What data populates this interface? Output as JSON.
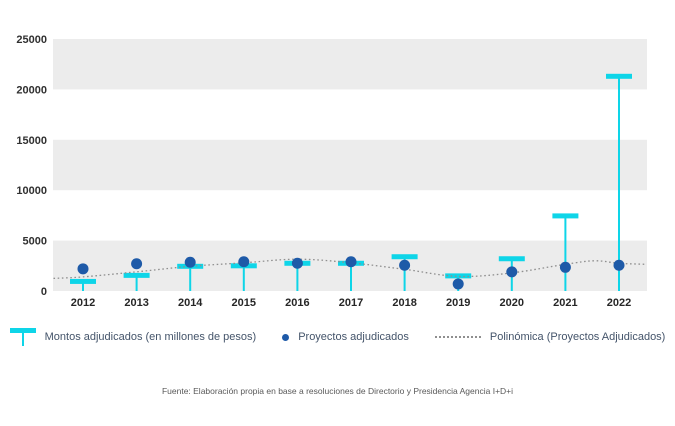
{
  "chart_data": {
    "type": "bar",
    "subtype": "combo: lollipop bars + scatter points + dotted polynomial trend",
    "title": "",
    "xlabel": "",
    "ylabel": "",
    "categories": [
      "2012",
      "2013",
      "2014",
      "2015",
      "2016",
      "2017",
      "2018",
      "2019",
      "2020",
      "2021",
      "2022"
    ],
    "ylim": [
      0,
      25000
    ],
    "yticks": [
      0,
      5000,
      10000,
      15000,
      20000,
      25000
    ],
    "grid": "alternating horizontal gray bands between gridlines",
    "legend_position": "bottom",
    "series": [
      {
        "name": "Montos adjudicados (en millones de pesos)",
        "type": "lollipop-bar",
        "color": "#0ed5e8",
        "values": [
          950,
          1550,
          2450,
          2500,
          2750,
          2750,
          3400,
          1500,
          3200,
          7450,
          21300
        ]
      },
      {
        "name": "Proyectos adjudicados",
        "type": "scatter",
        "color": "#1e5aa8",
        "values": [
          2200,
          2700,
          2850,
          2900,
          2750,
          2900,
          2550,
          700,
          1900,
          2350,
          2550
        ]
      },
      {
        "name": "Polinómica (Proyectos Adjudicados)",
        "type": "dotted-trend",
        "color": "#8f8f8f",
        "x": [
          2011.45,
          2012,
          2013,
          2014,
          2015,
          2016,
          2017,
          2018,
          2019,
          2020,
          2021,
          2021.55,
          2022,
          2022.5
        ],
        "values": [
          1250,
          1400,
          1900,
          2450,
          2800,
          3150,
          2800,
          2150,
          1450,
          1800,
          2650,
          3000,
          2750,
          2650
        ]
      }
    ],
    "colors": {
      "band": "#ececec",
      "tick_label": "#303030",
      "year_label": "#262626",
      "legend_text": "#44546a",
      "footer_text": "#595959"
    }
  },
  "footer": {
    "text": "Fuente: Elaboración propia en base a resoluciones de Directorio y Presidencia Agencia I+D+i"
  }
}
